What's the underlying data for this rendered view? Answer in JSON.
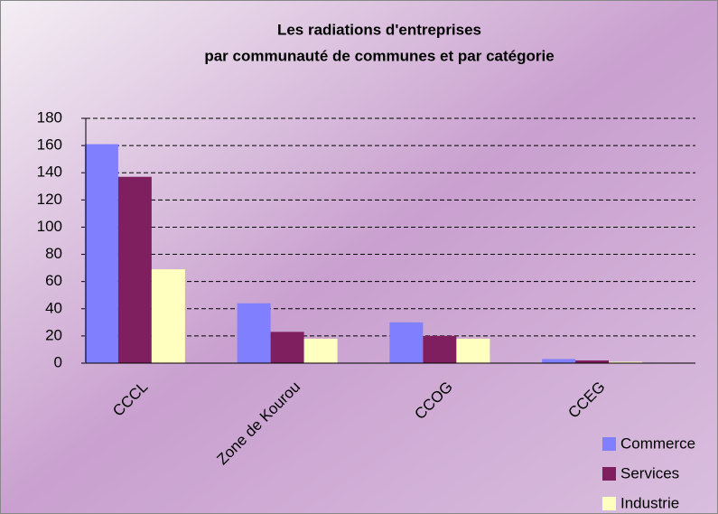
{
  "chart_data": {
    "type": "bar",
    "title": [
      "Les radiations d'entreprises",
      "par communauté de communes et par catégorie"
    ],
    "categories": [
      "CCCL",
      "Zone de Kourou",
      "CCOG",
      "CCEG"
    ],
    "series": [
      {
        "name": "Commerce",
        "color": "#8080ff",
        "values": [
          161,
          44,
          30,
          3
        ]
      },
      {
        "name": "Services",
        "color": "#801f5f",
        "values": [
          137,
          23,
          20,
          2
        ]
      },
      {
        "name": "Industrie",
        "color": "#ffffc0",
        "values": [
          69,
          18,
          18,
          1
        ]
      }
    ],
    "ylim": [
      0,
      180
    ],
    "yticks": [
      0,
      20,
      40,
      60,
      80,
      100,
      120,
      140,
      160,
      180
    ],
    "grid": true,
    "legend": "bottom-right"
  }
}
